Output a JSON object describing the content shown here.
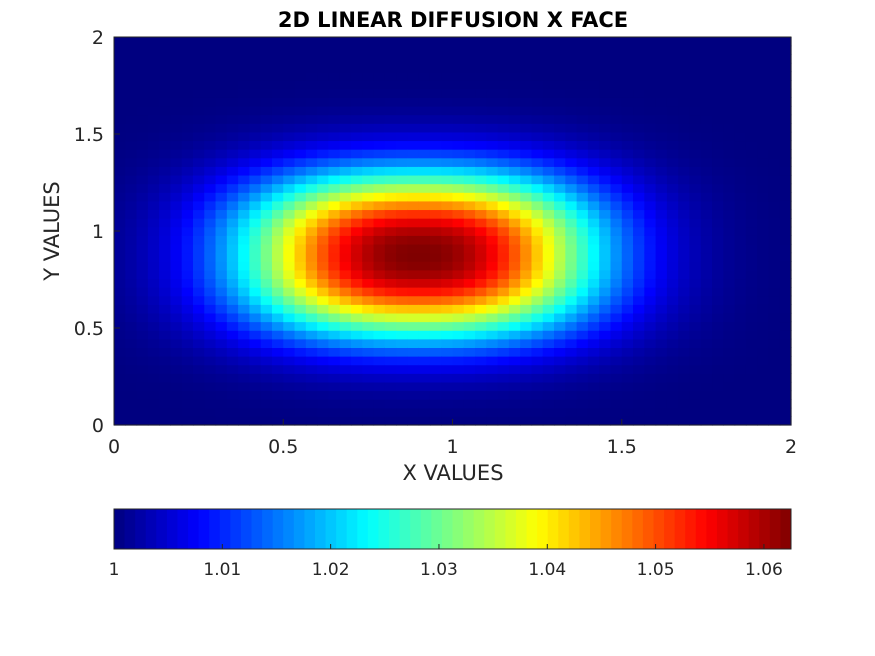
{
  "chart_data": {
    "type": "heatmap",
    "title": "2D LINEAR DIFFUSION X FACE",
    "xlabel": "X VALUES",
    "ylabel": "Y VALUES",
    "xlim": [
      0,
      2
    ],
    "ylim": [
      0,
      2
    ],
    "xticks": [
      0,
      0.5,
      1,
      1.5,
      2
    ],
    "xtick_labels": [
      "0",
      "0.5",
      "1",
      "1.5",
      "2"
    ],
    "yticks": [
      0,
      0.5,
      1,
      1.5,
      2
    ],
    "ytick_labels": [
      "0",
      "0.5",
      "1",
      "1.5",
      "2"
    ],
    "colormap": "jet",
    "grid": false,
    "colorbar": {
      "location": "bottom",
      "range": [
        1,
        1.0625
      ],
      "ticks": [
        1,
        1.01,
        1.02,
        1.03,
        1.04,
        1.05,
        1.06
      ],
      "tick_labels": [
        "1",
        "1.01",
        "1.02",
        "1.03",
        "1.04",
        "1.05",
        "1.06"
      ]
    },
    "field": {
      "description_peak_location": [
        0.9,
        0.88
      ],
      "peak_value": 1.0625,
      "base_value": 1.0,
      "x": [
        0,
        0.1,
        0.2,
        0.3,
        0.4,
        0.5,
        0.6,
        0.7,
        0.8,
        0.9,
        1.0,
        1.1,
        1.2,
        1.3,
        1.4,
        1.5,
        1.6,
        1.7,
        1.8,
        1.9,
        2.0
      ],
      "y": [
        0,
        0.1,
        0.2,
        0.3,
        0.4,
        0.5,
        0.6,
        0.7,
        0.8,
        0.9,
        1.0,
        1.1,
        1.2,
        1.3,
        1.4,
        1.5,
        1.6,
        1.7,
        1.8,
        1.9,
        2.0
      ],
      "sigma_x": 0.52,
      "sigma_y": 0.42
    }
  }
}
